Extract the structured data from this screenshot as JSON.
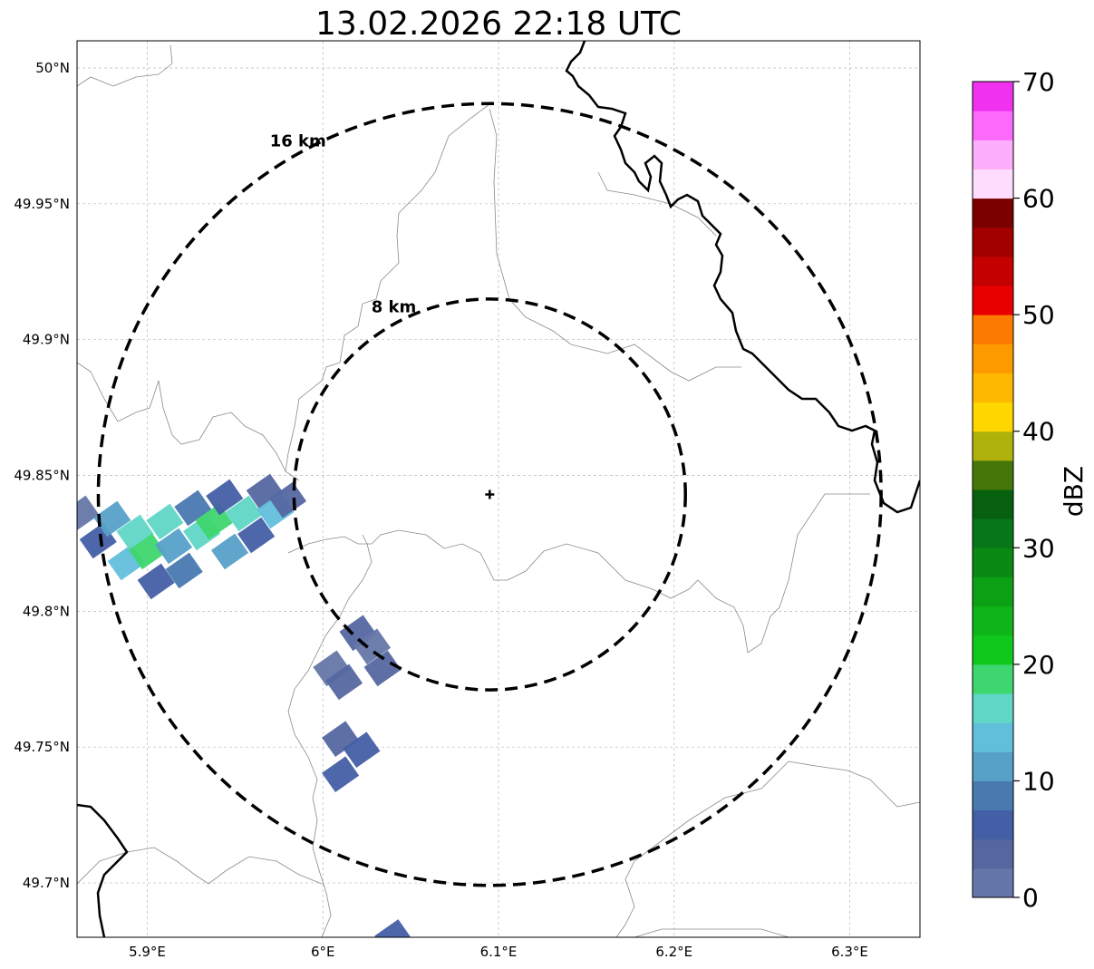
{
  "map": {
    "title": "13.02.2026 22:18 UTC",
    "lon_range": [
      5.86,
      6.34
    ],
    "lat_range": [
      49.68,
      50.01
    ],
    "lon_ticks": [
      {
        "value": 5.9,
        "label": "5.9°E"
      },
      {
        "value": 6.0,
        "label": "6°E"
      },
      {
        "value": 6.1,
        "label": "6.1°E"
      },
      {
        "value": 6.2,
        "label": "6.2°E"
      },
      {
        "value": 6.3,
        "label": "6.3°E"
      }
    ],
    "lat_ticks": [
      {
        "value": 50.0,
        "label": "50°N"
      },
      {
        "value": 49.95,
        "label": "49.95°N"
      },
      {
        "value": 49.9,
        "label": "49.9°N"
      },
      {
        "value": 49.85,
        "label": "49.85°N"
      },
      {
        "value": 49.8,
        "label": "49.8°N"
      },
      {
        "value": 49.75,
        "label": "49.75°N"
      },
      {
        "value": 49.7,
        "label": "49.7°N"
      }
    ],
    "grid": true,
    "radar_site": {
      "lon": 6.095,
      "lat": 49.843
    },
    "range_rings": [
      {
        "label": "8 km",
        "radius_km": 8
      },
      {
        "label": "16 km",
        "radius_km": 16
      }
    ],
    "borders": {
      "country_color": "#000000",
      "region_color": "#888888"
    },
    "echoes": [
      {
        "lon": 5.862,
        "lat": 49.836,
        "dbz": 2
      },
      {
        "lon": 5.872,
        "lat": 49.826,
        "dbz": 6
      },
      {
        "lon": 5.88,
        "lat": 49.834,
        "dbz": 10
      },
      {
        "lon": 5.888,
        "lat": 49.818,
        "dbz": 13
      },
      {
        "lon": 5.893,
        "lat": 49.829,
        "dbz": 15
      },
      {
        "lon": 5.9,
        "lat": 49.822,
        "dbz": 19
      },
      {
        "lon": 5.905,
        "lat": 49.811,
        "dbz": 6
      },
      {
        "lon": 5.91,
        "lat": 49.833,
        "dbz": 16
      },
      {
        "lon": 5.915,
        "lat": 49.824,
        "dbz": 11
      },
      {
        "lon": 5.921,
        "lat": 49.815,
        "dbz": 8
      },
      {
        "lon": 5.926,
        "lat": 49.838,
        "dbz": 9
      },
      {
        "lon": 5.931,
        "lat": 49.829,
        "dbz": 15
      },
      {
        "lon": 5.938,
        "lat": 49.833,
        "dbz": 19
      },
      {
        "lon": 5.944,
        "lat": 49.842,
        "dbz": 5
      },
      {
        "lon": 5.947,
        "lat": 49.822,
        "dbz": 10
      },
      {
        "lon": 5.955,
        "lat": 49.836,
        "dbz": 15
      },
      {
        "lon": 5.962,
        "lat": 49.828,
        "dbz": 7
      },
      {
        "lon": 5.967,
        "lat": 49.844,
        "dbz": 4
      },
      {
        "lon": 5.973,
        "lat": 49.837,
        "dbz": 13
      },
      {
        "lon": 5.98,
        "lat": 49.841,
        "dbz": 3
      },
      {
        "lon": 6.005,
        "lat": 49.779,
        "dbz": 2
      },
      {
        "lon": 6.012,
        "lat": 49.774,
        "dbz": 4
      },
      {
        "lon": 6.02,
        "lat": 49.792,
        "dbz": 3
      },
      {
        "lon": 6.028,
        "lat": 49.787,
        "dbz": 2
      },
      {
        "lon": 6.034,
        "lat": 49.779,
        "dbz": 3
      },
      {
        "lon": 6.01,
        "lat": 49.753,
        "dbz": 3
      },
      {
        "lon": 6.022,
        "lat": 49.749,
        "dbz": 5
      },
      {
        "lon": 6.01,
        "lat": 49.74,
        "dbz": 7
      },
      {
        "lon": 6.04,
        "lat": 49.68,
        "dbz": 6
      }
    ]
  },
  "colorbar": {
    "label": "dBZ",
    "min": 0,
    "max": 70,
    "ticks": [
      "0",
      "10",
      "20",
      "30",
      "40",
      "50",
      "60",
      "70"
    ],
    "colors": [
      "#6577a8",
      "#5567a0",
      "#435fa5",
      "#4a79b0",
      "#57a0c8",
      "#62bfdc",
      "#60d6c6",
      "#3ed66e",
      "#10c81c",
      "#0eb418",
      "#0ca014",
      "#0a8a12",
      "#08761a",
      "#06600e",
      "#46760a",
      "#aeb20a",
      "#fed600",
      "#fdb800",
      "#fd9a00",
      "#fc7a00",
      "#e80000",
      "#c40000",
      "#a20000",
      "#7a0000",
      "#fedcfe",
      "#fdaefc",
      "#fc6afc",
      "#f032f0"
    ]
  }
}
